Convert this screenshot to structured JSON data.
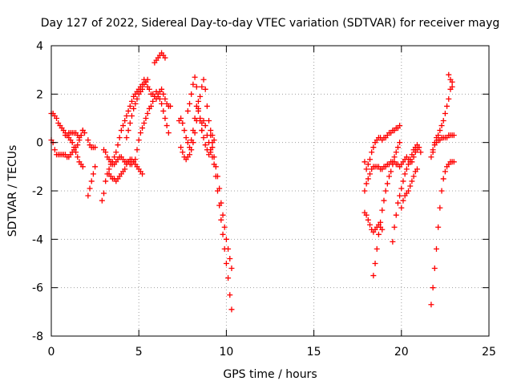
{
  "chart_data": {
    "type": "scatter",
    "title": "Day 127 of 2022, Sidereal Day-to-day VTEC variation (SDTVAR) for receiver mayg",
    "xlabel": "GPS time / hours",
    "ylabel": "SDTVAR / TECUs",
    "xlim": [
      0,
      25
    ],
    "ylim": [
      -8,
      4
    ],
    "xticks": [
      0,
      5,
      10,
      15,
      20,
      25
    ],
    "yticks": [
      -8,
      -6,
      -4,
      -2,
      0,
      2,
      4
    ],
    "grid": true,
    "marker": "+",
    "color": "#ff0000",
    "series": [
      {
        "x": [
          0.0,
          0.1,
          0.2,
          0.3,
          0.4,
          0.5,
          0.6,
          0.7,
          0.8,
          0.9,
          1.0,
          1.1,
          1.2,
          1.3,
          1.4,
          1.5,
          1.6,
          1.7,
          1.8
        ],
        "y": [
          1.2,
          1.2,
          1.1,
          1.0,
          0.8,
          0.7,
          0.6,
          0.5,
          0.4,
          0.3,
          0.2,
          0.1,
          0.0,
          -0.2,
          -0.4,
          -0.6,
          -0.8,
          -0.9,
          -1.0
        ]
      },
      {
        "x": [
          0.0,
          0.1,
          0.2,
          0.3,
          0.4,
          0.5,
          0.6,
          0.7,
          0.8,
          0.9,
          1.0,
          1.1,
          1.2,
          1.3,
          1.4,
          1.5,
          1.6,
          1.7,
          1.8,
          1.9
        ],
        "y": [
          0.1,
          0.0,
          -0.3,
          -0.5,
          -0.5,
          -0.5,
          -0.5,
          -0.5,
          -0.5,
          -0.6,
          -0.6,
          -0.5,
          -0.4,
          -0.3,
          -0.2,
          -0.1,
          0.1,
          0.3,
          0.5,
          0.4
        ]
      },
      {
        "x": [
          0.8,
          0.9,
          1.0,
          1.1,
          1.2,
          1.3,
          1.4,
          1.5,
          1.6,
          1.7,
          1.8
        ],
        "y": [
          0.3,
          0.3,
          0.4,
          0.4,
          0.4,
          0.4,
          0.4,
          0.3,
          0.2,
          0.3,
          0.5
        ]
      },
      {
        "x": [
          2.1,
          2.2,
          2.3,
          2.4,
          2.5
        ],
        "y": [
          0.1,
          -0.1,
          -0.2,
          -0.2,
          -0.2
        ]
      },
      {
        "x": [
          2.1,
          2.2,
          2.3,
          2.4,
          2.5
        ],
        "y": [
          -2.2,
          -1.9,
          -1.6,
          -1.3,
          -1.0
        ]
      },
      {
        "x": [
          2.9,
          3.0,
          3.1,
          3.2,
          3.3,
          3.4,
          3.5,
          3.6,
          3.7,
          3.8,
          3.9,
          4.0,
          4.1,
          4.2,
          4.3,
          4.4,
          4.5,
          4.6,
          4.7,
          4.8,
          4.9,
          5.0,
          5.1,
          5.2,
          5.3,
          5.4,
          5.5,
          5.6,
          5.7,
          5.8,
          5.9,
          6.0,
          6.1,
          6.2,
          6.3,
          6.4,
          6.5,
          6.6,
          6.7,
          6.8
        ],
        "y": [
          -2.4,
          -2.1,
          -1.6,
          -1.3,
          -1.1,
          -0.9,
          -0.8,
          -0.6,
          -0.4,
          -0.1,
          0.2,
          0.5,
          0.7,
          0.9,
          1.1,
          1.3,
          1.5,
          1.7,
          1.9,
          2.0,
          2.1,
          2.2,
          2.3,
          2.4,
          2.6,
          2.5,
          2.3,
          2.2,
          2.0,
          2.0,
          1.9,
          1.8,
          1.9,
          2.1,
          2.2,
          2.0,
          1.8,
          1.6,
          1.5,
          1.5
        ]
      },
      {
        "x": [
          3.0,
          3.1,
          3.2,
          3.3,
          3.4,
          3.5,
          3.6,
          3.7,
          3.8,
          3.9,
          4.0,
          4.1,
          4.2,
          4.3,
          4.4,
          4.5,
          4.6,
          4.7,
          4.8,
          4.9,
          5.0,
          5.1,
          5.2,
          5.3,
          5.4,
          5.5,
          5.6,
          5.7,
          5.8,
          5.9,
          6.0,
          6.1,
          6.2,
          6.3,
          6.4,
          6.5,
          6.6,
          6.7
        ],
        "y": [
          -0.3,
          -0.4,
          -0.6,
          -0.7,
          -0.8,
          -0.9,
          -0.9,
          -0.8,
          -0.7,
          -0.6,
          -0.6,
          -0.7,
          -0.8,
          -0.8,
          -0.8,
          -0.9,
          -0.9,
          -0.8,
          -0.7,
          -0.3,
          0.1,
          0.4,
          0.6,
          0.8,
          1.0,
          1.2,
          1.4,
          1.5,
          1.7,
          1.9,
          2.1,
          2.0,
          1.8,
          1.6,
          1.3,
          1.0,
          0.7,
          0.4
        ]
      },
      {
        "x": [
          3.3,
          3.4,
          3.5,
          3.6,
          3.7,
          3.8,
          3.9,
          4.0,
          4.1,
          4.2,
          4.3,
          4.4,
          4.5,
          4.6,
          4.7,
          4.8,
          4.9,
          5.0,
          5.1,
          5.2
        ],
        "y": [
          -1.3,
          -1.4,
          -1.5,
          -1.5,
          -1.6,
          -1.5,
          -1.4,
          -1.3,
          -1.2,
          -1.1,
          -0.9,
          -0.8,
          -0.7,
          -0.7,
          -0.8,
          -0.9,
          -1.0,
          -1.1,
          -1.2,
          -1.3
        ]
      },
      {
        "x": [
          4.3,
          4.4,
          4.5,
          4.6,
          4.7,
          4.8,
          4.9,
          5.0,
          5.1,
          5.2,
          5.3,
          5.4,
          5.5
        ],
        "y": [
          0.2,
          0.5,
          0.8,
          1.1,
          1.4,
          1.6,
          1.8,
          2.0,
          2.1,
          2.2,
          2.4,
          2.5,
          2.6
        ]
      },
      {
        "x": [
          5.9,
          6.0,
          6.1,
          6.2,
          6.3,
          6.4,
          6.5
        ],
        "y": [
          3.3,
          3.4,
          3.5,
          3.6,
          3.7,
          3.6,
          3.5
        ]
      },
      {
        "x": [
          7.3,
          7.4,
          7.5,
          7.6,
          7.7,
          7.8,
          7.9,
          8.0,
          8.1,
          8.2,
          8.3,
          8.4,
          8.5,
          8.6,
          8.7,
          8.8,
          8.9,
          9.0,
          9.1,
          9.2
        ],
        "y": [
          0.9,
          1.0,
          0.8,
          0.5,
          0.2,
          0.0,
          -0.2,
          0.1,
          0.5,
          1.0,
          1.5,
          1.3,
          0.9,
          0.5,
          0.2,
          -0.1,
          -0.3,
          -0.5,
          -0.3,
          0.0
        ]
      },
      {
        "x": [
          7.4,
          7.5,
          7.6,
          7.7,
          7.8,
          7.9,
          8.0,
          8.1,
          8.2,
          8.3,
          8.4,
          8.5,
          8.6,
          8.7,
          8.8,
          8.9,
          9.0,
          9.1,
          9.2,
          9.3
        ],
        "y": [
          -0.2,
          -0.4,
          -0.6,
          -0.7,
          -0.6,
          -0.5,
          -0.3,
          0.0,
          0.4,
          0.9,
          1.4,
          1.9,
          2.3,
          2.6,
          2.2,
          1.5,
          0.9,
          0.5,
          0.3,
          0.1
        ]
      },
      {
        "x": [
          7.8,
          7.9,
          8.0,
          8.1,
          8.2,
          8.3,
          8.4,
          8.5,
          8.6
        ],
        "y": [
          1.3,
          1.6,
          2.0,
          2.4,
          2.7,
          2.3,
          1.7,
          1.0,
          0.5
        ]
      },
      {
        "x": [
          8.6,
          8.7,
          8.8,
          8.9,
          9.0,
          9.1,
          9.2,
          9.3,
          9.4,
          9.5,
          9.6,
          9.7,
          9.8,
          9.9,
          10.0,
          10.1,
          10.2,
          10.3
        ],
        "y": [
          0.8,
          0.9,
          0.7,
          0.3,
          0.0,
          -0.4,
          -0.6,
          -0.9,
          -1.4,
          -2.0,
          -2.6,
          -3.2,
          -3.8,
          -4.4,
          -5.0,
          -5.6,
          -6.3,
          -6.9
        ]
      },
      {
        "x": [
          9.1,
          9.2,
          9.3,
          9.4,
          9.5,
          9.6,
          9.7,
          9.8,
          9.9,
          10.0,
          10.1,
          10.2,
          10.3
        ],
        "y": [
          0.3,
          -0.2,
          -0.6,
          -1.0,
          -1.4,
          -1.9,
          -2.5,
          -3.0,
          -3.5,
          -4.0,
          -4.4,
          -4.8,
          -5.2
        ]
      },
      {
        "x": [
          17.9,
          18.0,
          18.1,
          18.2,
          18.3,
          18.4,
          18.5,
          18.6,
          18.7,
          18.8,
          18.9,
          19.0,
          19.1,
          19.2,
          19.3,
          19.4,
          19.5,
          19.6,
          19.7,
          19.8,
          19.9
        ],
        "y": [
          -0.8,
          -1.1,
          -0.9,
          -0.7,
          -0.4,
          -0.2,
          0.0,
          0.1,
          0.2,
          0.2,
          0.1,
          0.2,
          0.2,
          0.3,
          0.4,
          0.4,
          0.5,
          0.5,
          0.6,
          0.6,
          0.7
        ]
      },
      {
        "x": [
          17.9,
          18.0,
          18.1,
          18.2,
          18.3,
          18.4,
          18.5,
          18.6,
          18.7,
          18.8,
          18.9,
          19.0,
          19.1,
          19.2,
          19.3,
          19.4,
          19.5,
          19.6,
          19.7,
          19.8,
          19.9,
          20.0,
          20.1,
          20.2,
          20.3,
          20.4,
          20.5
        ],
        "y": [
          -2.0,
          -1.7,
          -1.5,
          -1.3,
          -1.1,
          -1.0,
          -1.0,
          -1.0,
          -1.0,
          -1.1,
          -1.1,
          -1.0,
          -1.0,
          -0.9,
          -0.9,
          -0.8,
          -0.8,
          -0.8,
          -0.9,
          -0.9,
          -1.0,
          -0.9,
          -0.8,
          -0.7,
          -0.6,
          -0.7,
          -0.8
        ]
      },
      {
        "x": [
          17.9,
          18.0,
          18.1,
          18.2,
          18.3,
          18.4,
          18.5,
          18.6,
          18.7,
          18.8,
          18.9
        ],
        "y": [
          -2.9,
          -3.0,
          -3.2,
          -3.4,
          -3.6,
          -3.7,
          -3.6,
          -3.5,
          -3.4,
          -3.5,
          -3.6
        ]
      },
      {
        "x": [
          18.4,
          18.5,
          18.6,
          18.7,
          18.8,
          18.9,
          19.0,
          19.1,
          19.2,
          19.3,
          19.4,
          19.5,
          19.6,
          19.7,
          19.8,
          19.9
        ],
        "y": [
          -5.5,
          -5.0,
          -4.4,
          -3.8,
          -3.3,
          -2.8,
          -2.4,
          -2.0,
          -1.7,
          -1.4,
          -1.2,
          -0.9,
          -0.6,
          -0.4,
          -0.2,
          0.0
        ]
      },
      {
        "x": [
          19.5,
          19.6,
          19.7,
          19.8,
          19.9,
          20.0,
          20.1,
          20.2,
          20.3,
          20.4,
          20.5,
          20.6,
          20.7,
          20.8,
          20.9,
          21.0
        ],
        "y": [
          -4.1,
          -3.5,
          -3.0,
          -2.5,
          -2.2,
          -1.9,
          -1.6,
          -1.3,
          -1.1,
          -0.9,
          -0.7,
          -0.5,
          -0.3,
          -0.2,
          -0.1,
          -0.2
        ]
      },
      {
        "x": [
          20.0,
          20.1,
          20.2,
          20.3,
          20.4,
          20.5,
          20.6,
          20.7,
          20.8,
          20.9
        ],
        "y": [
          -2.7,
          -2.4,
          -2.2,
          -2.1,
          -2.0,
          -1.8,
          -1.6,
          -1.4,
          -1.2,
          -1.1
        ]
      },
      {
        "x": [
          20.6,
          20.7,
          20.8,
          20.9,
          21.0,
          21.1
        ],
        "y": [
          -0.8,
          -0.6,
          -0.4,
          -0.3,
          -0.2,
          -0.4
        ]
      },
      {
        "x": [
          21.7,
          21.8,
          21.9,
          22.0,
          22.1,
          22.2,
          22.3,
          22.4,
          22.5,
          22.6,
          22.7,
          22.8,
          22.9,
          23.0
        ],
        "y": [
          -6.7,
          -6.0,
          -5.2,
          -4.4,
          -3.5,
          -2.7,
          -2.0,
          -1.5,
          -1.2,
          -1.0,
          -0.9,
          -0.8,
          -0.8,
          -0.8
        ]
      },
      {
        "x": [
          21.7,
          21.8,
          21.9,
          22.0,
          22.1,
          22.2,
          22.3,
          22.4,
          22.5,
          22.6,
          22.7,
          22.8,
          22.9,
          23.0
        ],
        "y": [
          -0.6,
          -0.4,
          -0.1,
          0.0,
          0.1,
          0.1,
          0.2,
          0.2,
          0.2,
          0.2,
          0.3,
          0.3,
          0.3,
          0.3
        ]
      },
      {
        "x": [
          21.8,
          21.9,
          22.0,
          22.1,
          22.2,
          22.3,
          22.4,
          22.5,
          22.6,
          22.7,
          22.8,
          22.9
        ],
        "y": [
          -0.3,
          0.0,
          0.2,
          0.3,
          0.5,
          0.7,
          0.9,
          1.2,
          1.5,
          1.8,
          2.2,
          2.5
        ]
      },
      {
        "x": [
          22.7,
          22.8,
          22.9
        ],
        "y": [
          2.8,
          2.6,
          2.3
        ]
      }
    ]
  }
}
